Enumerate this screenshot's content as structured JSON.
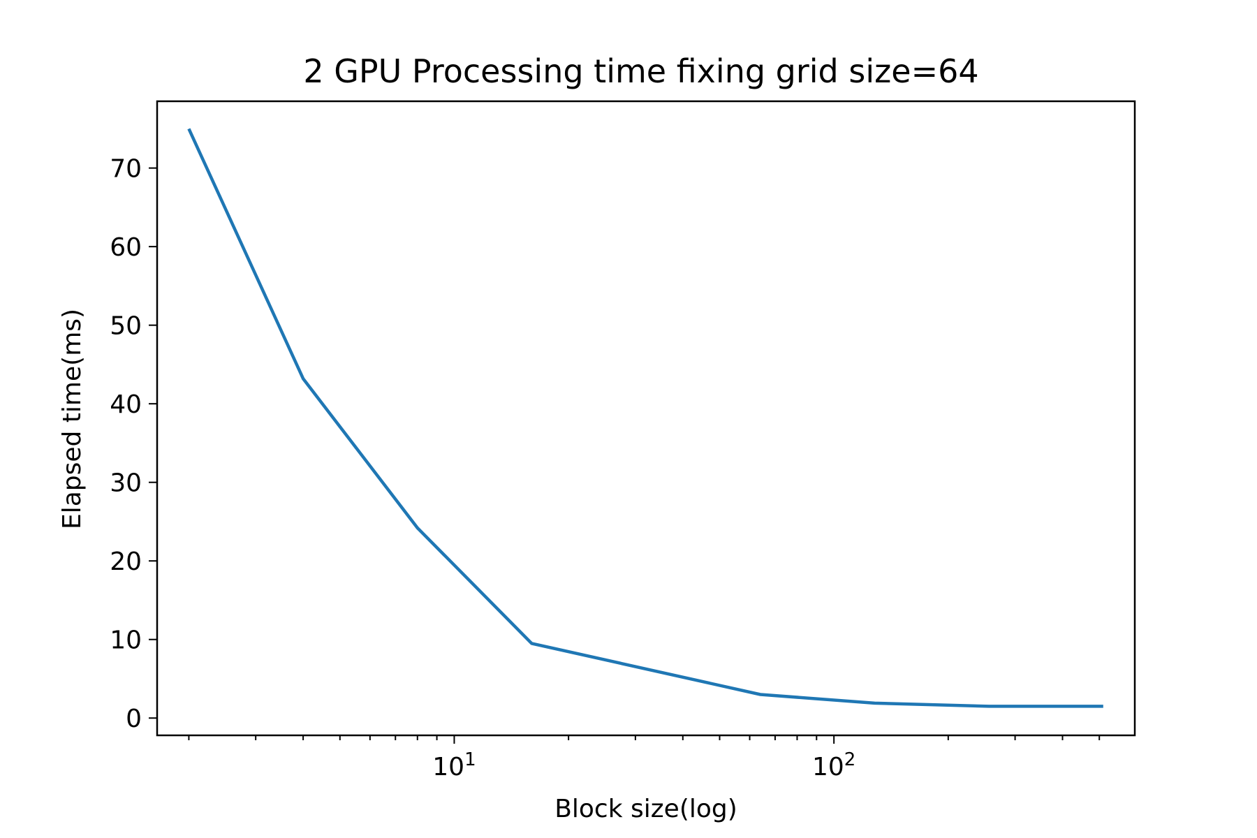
{
  "chart_data": {
    "type": "line",
    "title": "2 GPU Processing time fixing grid size=64",
    "xlabel": "Block size(log)",
    "ylabel": "Elapsed time(ms)",
    "xscale": "log",
    "xlim": [
      1.65,
      620
    ],
    "ylim": [
      -2.2,
      78.5
    ],
    "grid": false,
    "x_major_ticks": [
      {
        "value": 10,
        "base": "10",
        "exp": "1"
      },
      {
        "value": 100,
        "base": "10",
        "exp": "2"
      }
    ],
    "x_minor_ticks": [
      2,
      3,
      4,
      5,
      6,
      7,
      8,
      9,
      20,
      30,
      40,
      50,
      60,
      70,
      80,
      90,
      200,
      300,
      400,
      500
    ],
    "y_ticks": [
      0,
      10,
      20,
      30,
      40,
      50,
      60,
      70
    ],
    "series": [
      {
        "color": "#1f77b4",
        "x": [
          2,
          4,
          8,
          16,
          64,
          128,
          256,
          512
        ],
        "y": [
          75.0,
          43.2,
          24.2,
          9.5,
          3.0,
          1.9,
          1.5,
          1.5
        ]
      }
    ]
  }
}
